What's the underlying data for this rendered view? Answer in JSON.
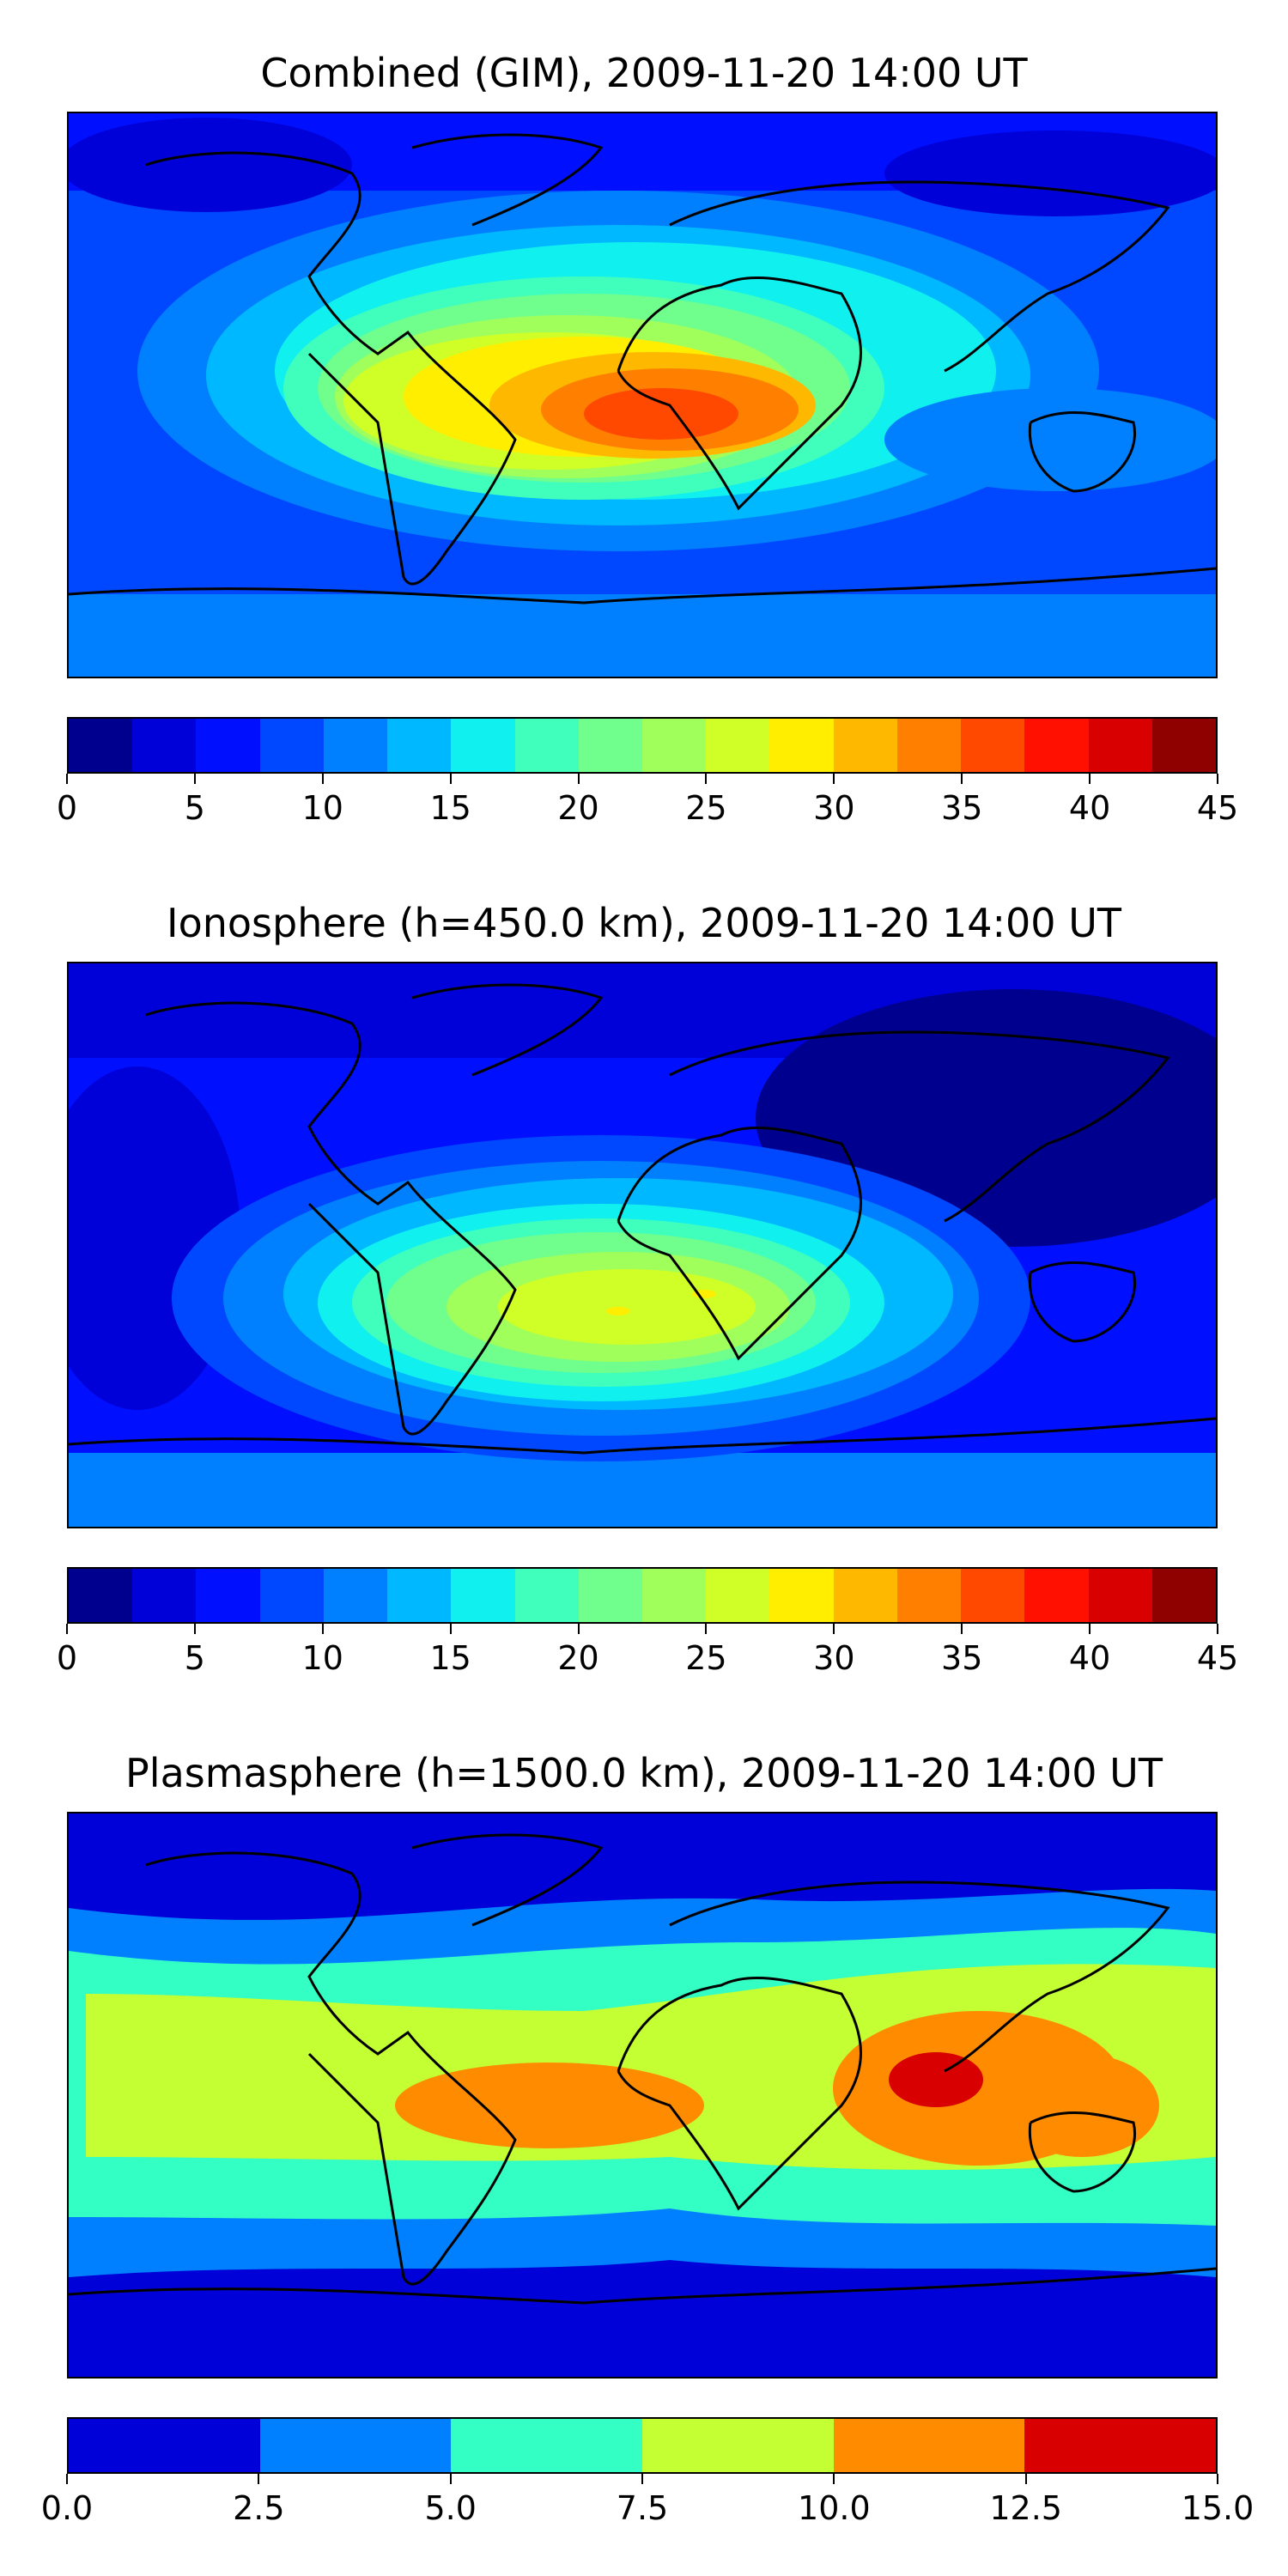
{
  "panels": [
    {
      "title": "Combined (GIM), 2009-11-20 14:00 UT",
      "colorbar_ticks": [
        "0",
        "5",
        "10",
        "15",
        "20",
        "25",
        "30",
        "35",
        "40",
        "45"
      ],
      "range": [
        0,
        45
      ]
    },
    {
      "title": "Ionosphere  (h=450.0 km), 2009-11-20 14:00 UT",
      "colorbar_ticks": [
        "0",
        "5",
        "10",
        "15",
        "20",
        "25",
        "30",
        "35",
        "40",
        "45"
      ],
      "range": [
        0,
        45
      ]
    },
    {
      "title": "Plasmasphere (h=1500.0 km), 2009-11-20 14:00 UT",
      "colorbar_ticks": [
        "0.0",
        "2.5",
        "5.0",
        "7.5",
        "10.0",
        "12.5",
        "15.0"
      ],
      "range": [
        0,
        15
      ]
    }
  ],
  "colors": {
    "jet18": [
      "#00008f",
      "#0000d8",
      "#0010ff",
      "#0048ff",
      "#0080ff",
      "#00b8ff",
      "#10f0ee",
      "#40ffbc",
      "#70ff8c",
      "#a0ff5a",
      "#d0ff28",
      "#ffee00",
      "#ffb800",
      "#ff8000",
      "#ff4800",
      "#ff1000",
      "#d80000",
      "#8f0000"
    ],
    "plasma6": [
      "#0000d8",
      "#0080ff",
      "#33ffc4",
      "#c4ff33",
      "#ff8c00",
      "#d80000"
    ],
    "coastline": "#000000"
  }
}
